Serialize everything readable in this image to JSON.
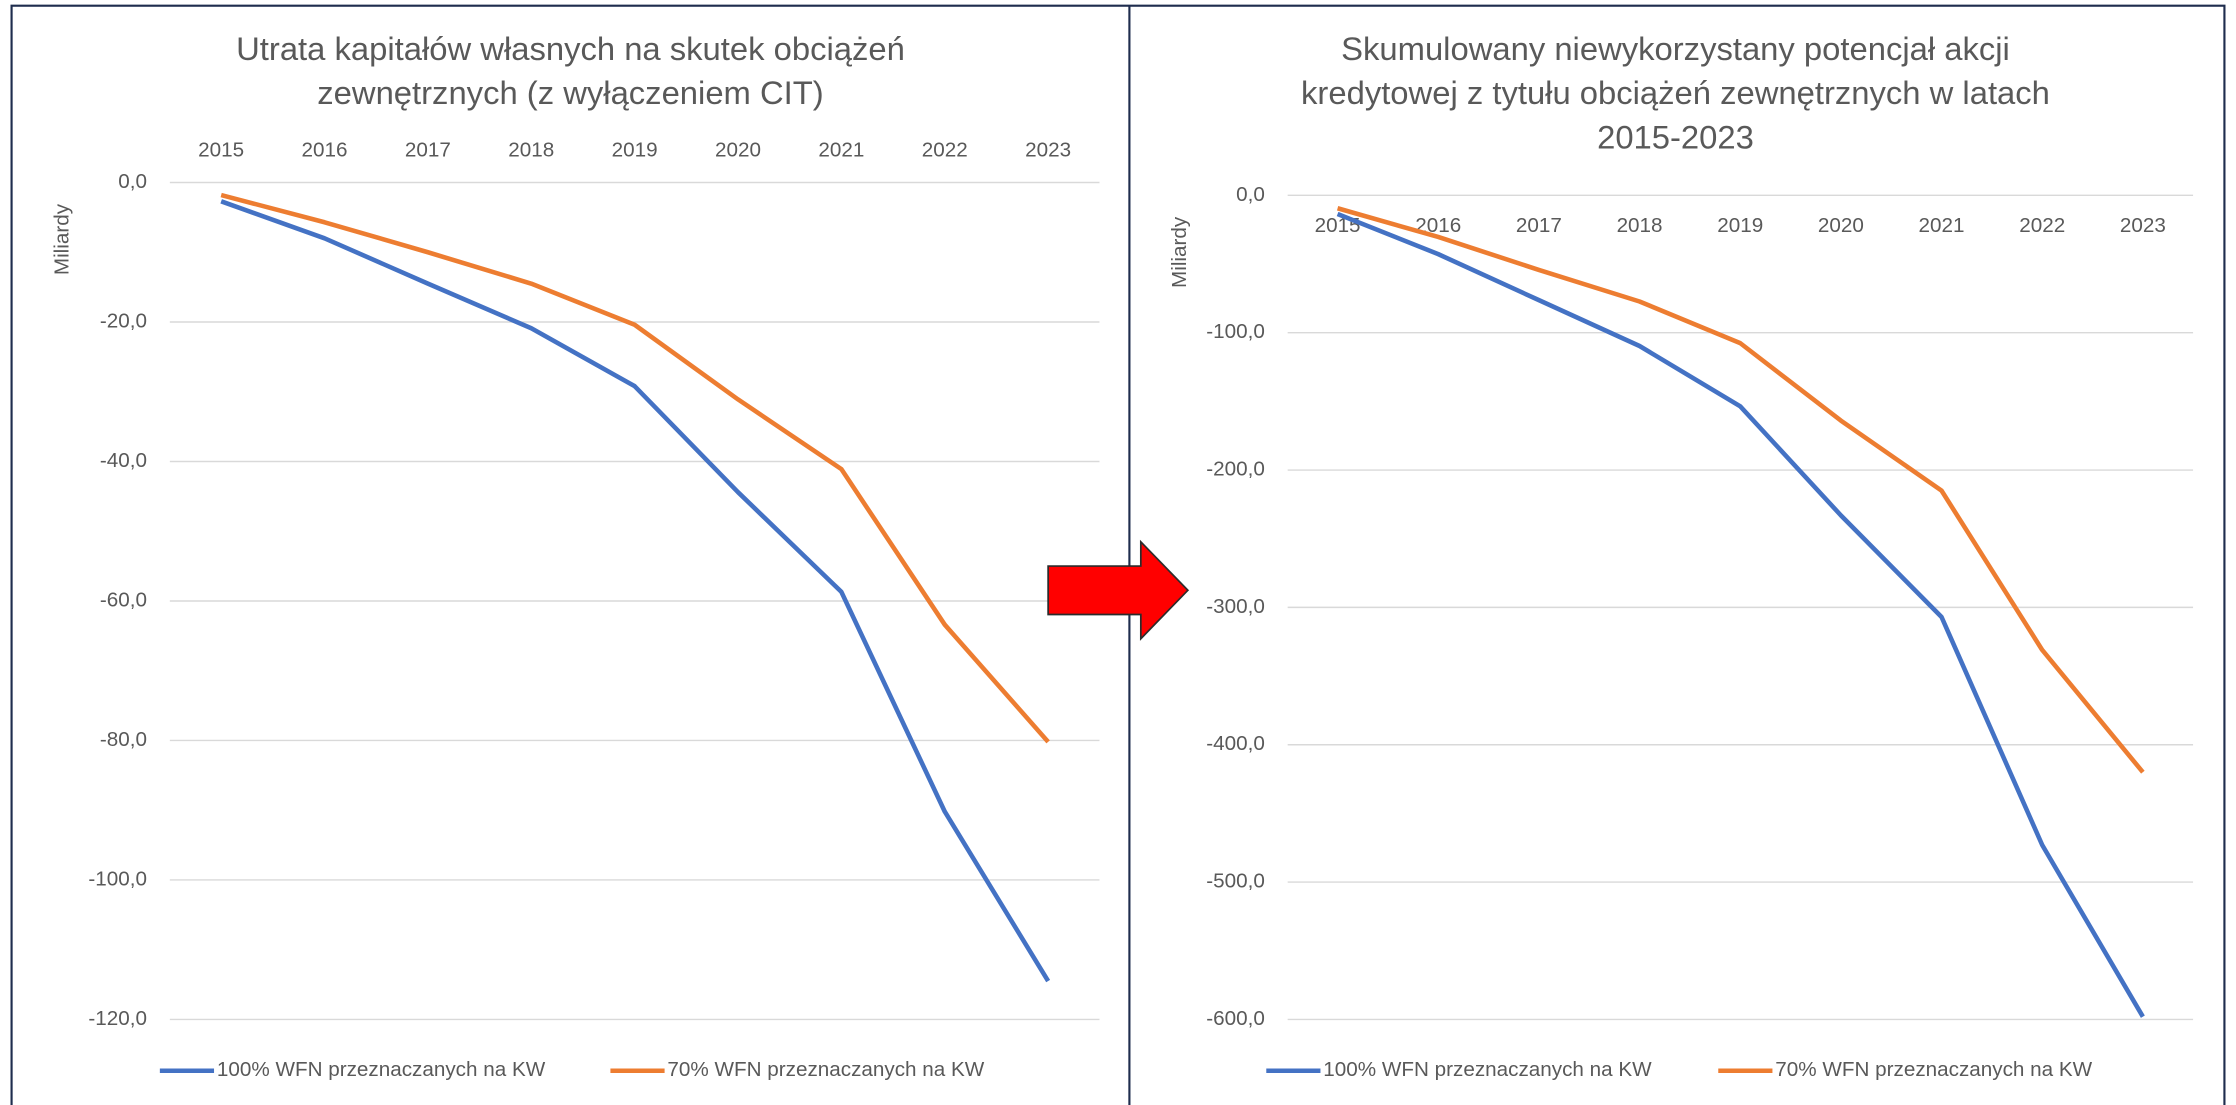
{
  "chart_data": [
    {
      "type": "line",
      "title": [
        "Utrata kapitałów własnych na skutek obciążeń",
        "zewnętrznych (z wyłączeniem CIT)"
      ],
      "ylabel": "Miliardy",
      "categories": [
        "2015",
        "2016",
        "2017",
        "2018",
        "2019",
        "2020",
        "2021",
        "2022",
        "2023"
      ],
      "series": [
        {
          "name": "100% WFN przeznaczanych na KW",
          "color": "#4472c4",
          "values": [
            -2.7,
            -8.0,
            -14.5,
            -20.9,
            -29.2,
            -44.4,
            -58.7,
            -90.2,
            -114.5
          ]
        },
        {
          "name": "70% WFN przeznaczanych na KW",
          "color": "#ed7d31",
          "values": [
            -1.8,
            -5.7,
            -10.0,
            -14.5,
            -20.4,
            -31.1,
            -41.1,
            -63.4,
            -80.2
          ]
        }
      ],
      "ylim": [
        -120,
        0
      ],
      "yticks": [
        {
          "value": 0,
          "label": "0,0"
        },
        {
          "value": -20,
          "label": "-20,0"
        },
        {
          "value": -40,
          "label": "-40,0"
        },
        {
          "value": -60,
          "label": "-60,0"
        },
        {
          "value": -80,
          "label": "-80,0"
        },
        {
          "value": -100,
          "label": "-100,0"
        },
        {
          "value": -120,
          "label": "-120,0"
        }
      ],
      "grid": true,
      "legend": "bottom"
    },
    {
      "type": "line",
      "title": [
        "Skumulowany niewykorzystany potencjał akcji",
        "kredytowej z tytułu obciążeń zewnętrznych w latach",
        "2015-2023"
      ],
      "ylabel": "Miliardy",
      "categories": [
        "2015",
        "2016",
        "2017",
        "2018",
        "2019",
        "2020",
        "2021",
        "2022",
        "2023"
      ],
      "series": [
        {
          "name": "100% WFN przeznaczanych na KW",
          "color": "#4472c4",
          "values": [
            -13.6,
            -42.8,
            -76.3,
            -109.7,
            -153.6,
            -233,
            -307,
            -473,
            -598
          ]
        },
        {
          "name": "70% WFN przeznaczanych na KW",
          "color": "#ed7d31",
          "values": [
            -9.4,
            -30.3,
            -54.3,
            -77.3,
            -107.6,
            -164,
            -215,
            -331,
            -420
          ]
        }
      ],
      "ylim": [
        -600,
        0
      ],
      "yticks": [
        {
          "value": 0,
          "label": "0,0"
        },
        {
          "value": -100,
          "label": "-100,0"
        },
        {
          "value": -200,
          "label": "-200,0"
        },
        {
          "value": -300,
          "label": "-300,0"
        },
        {
          "value": -400,
          "label": "-400,0"
        },
        {
          "value": -500,
          "label": "-500,0"
        },
        {
          "value": -600,
          "label": "-600,0"
        }
      ],
      "grid": true,
      "legend": "bottom"
    }
  ]
}
